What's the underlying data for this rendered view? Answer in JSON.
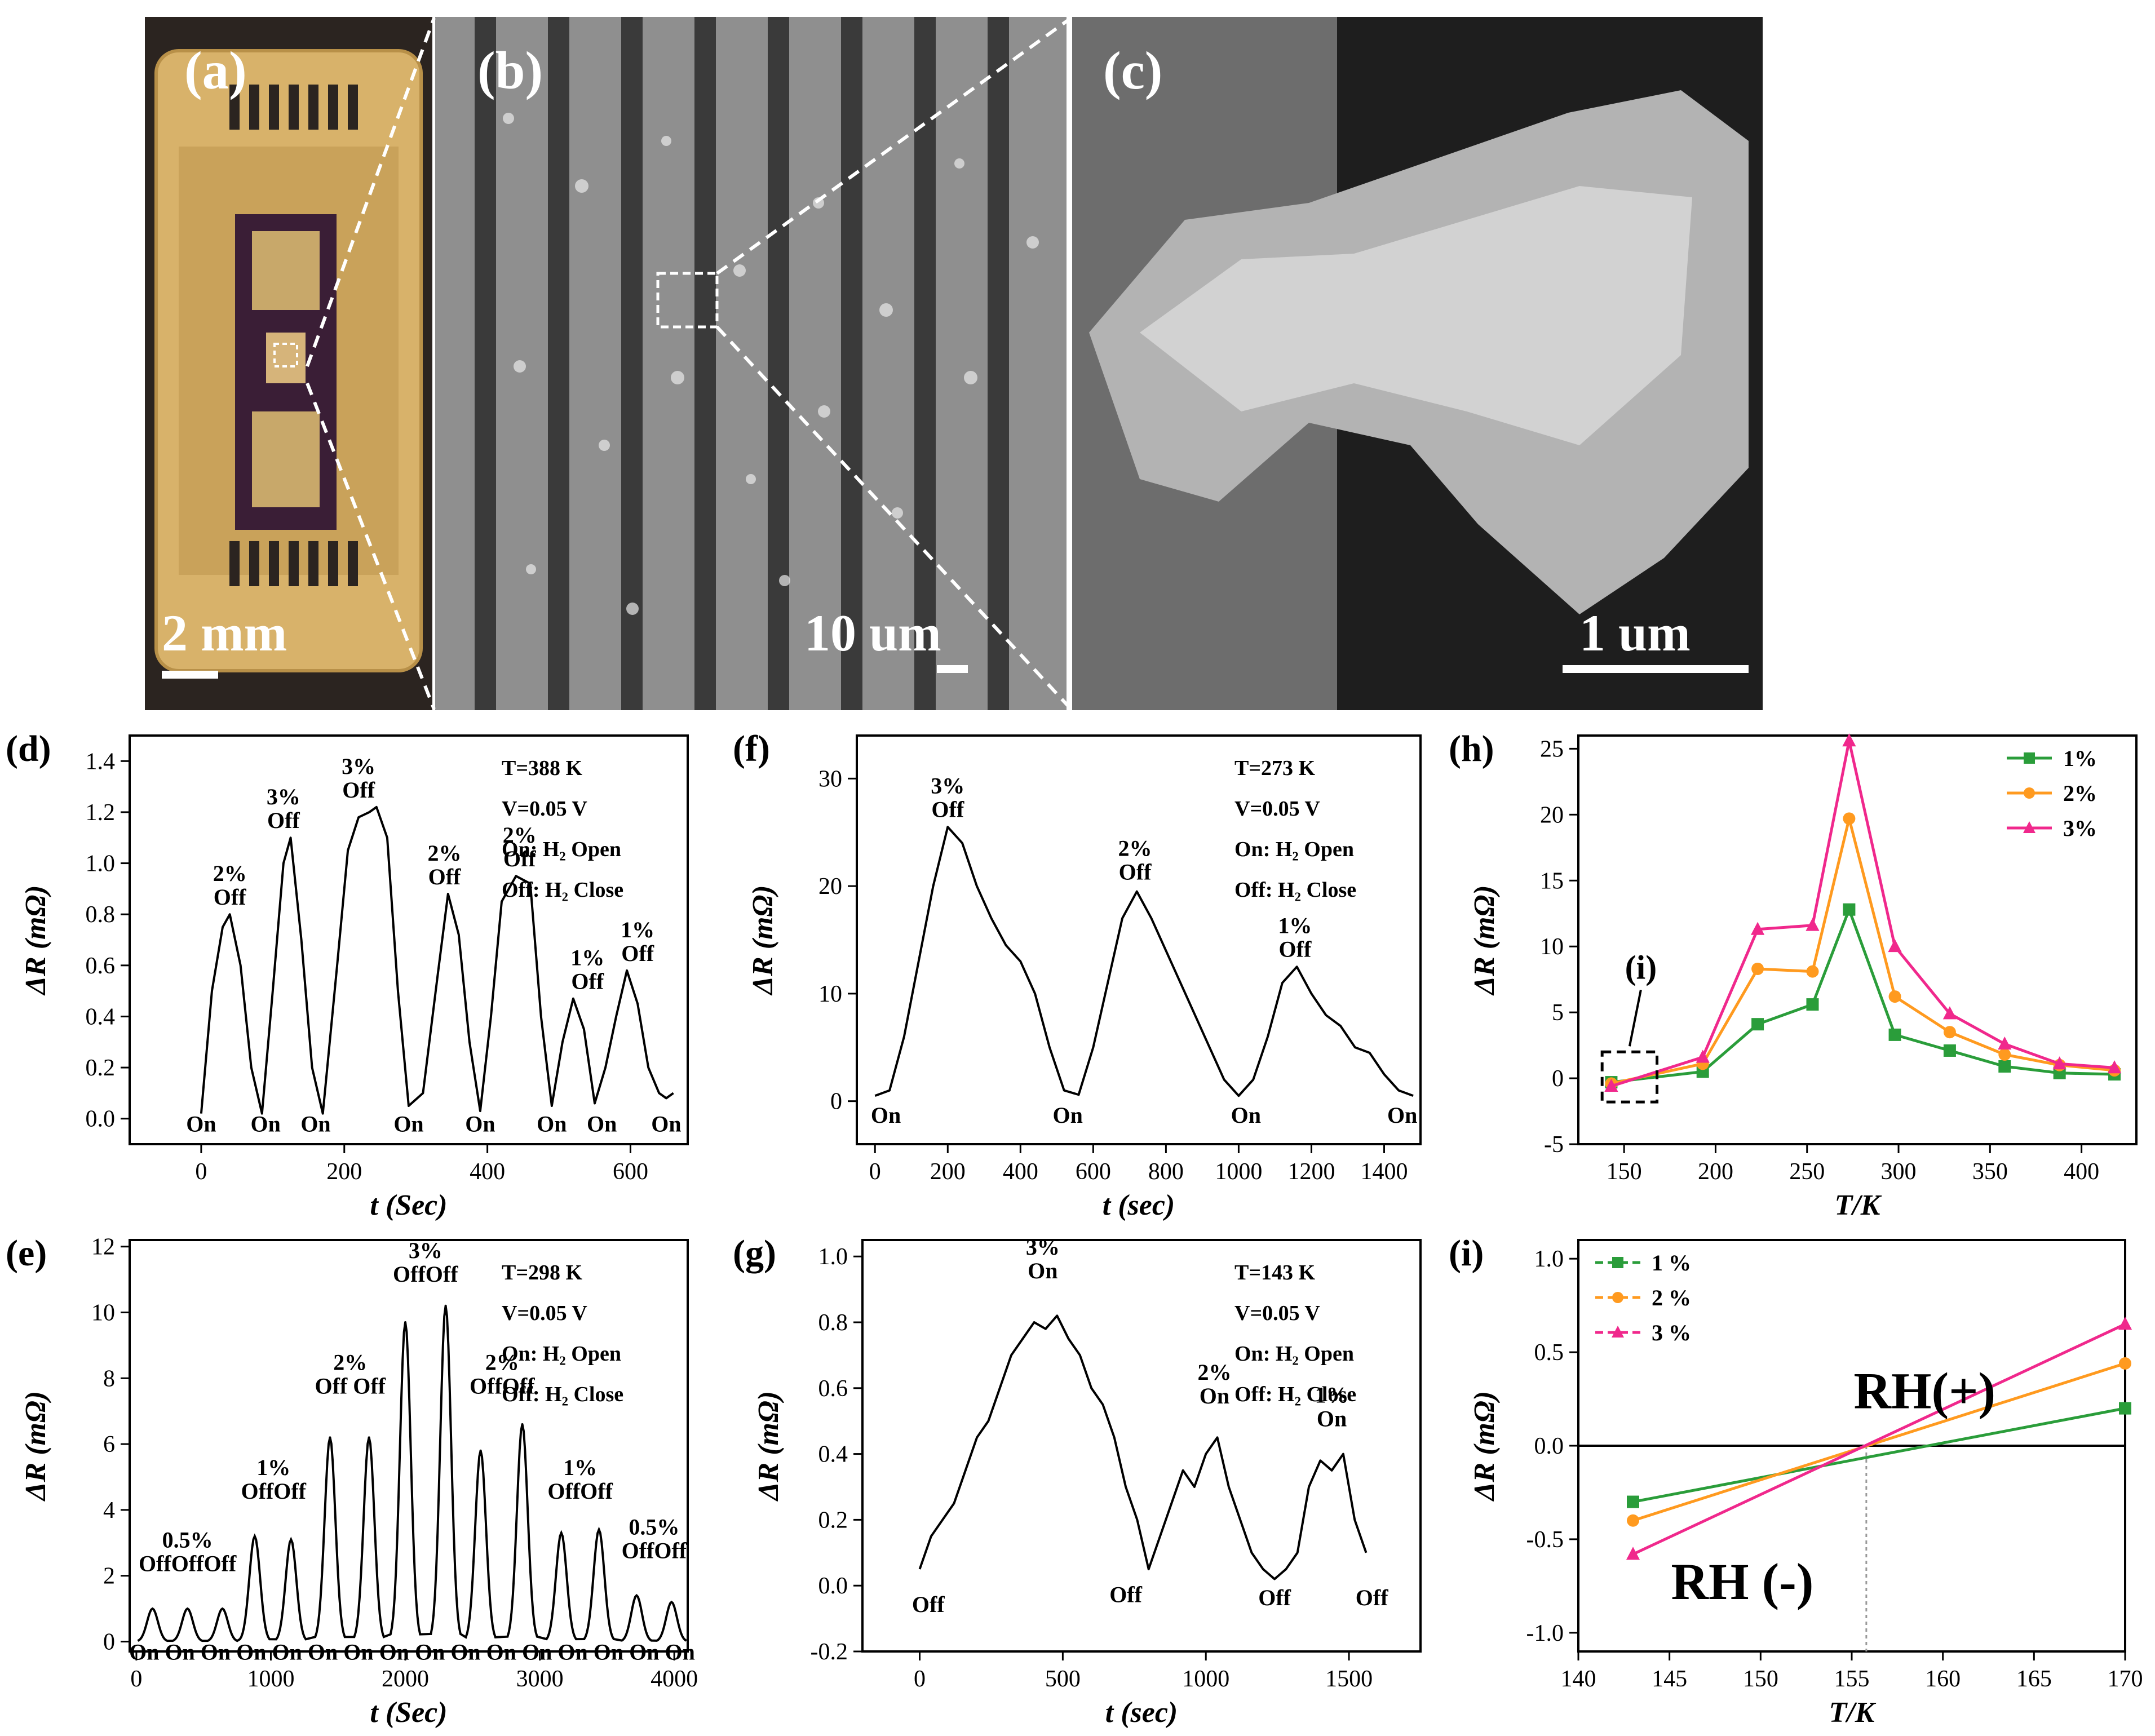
{
  "photos": [
    {
      "label": "(a)",
      "scale": "2 mm"
    },
    {
      "label": "(b)",
      "scale": "10 um"
    },
    {
      "label": "(c)",
      "scale": "1 um"
    }
  ],
  "chart_data": [
    {
      "id": "d",
      "label": "(d)",
      "type": "line",
      "xlabel": "t (Sec)",
      "ylabel": "ΔR (mΩ)",
      "xlim": [
        -100,
        680
      ],
      "ylim": [
        -0.1,
        1.5
      ],
      "xticks": [
        0,
        200,
        400,
        600
      ],
      "yticks": [
        0.0,
        0.2,
        0.4,
        0.6,
        0.8,
        1.0,
        1.2,
        1.4
      ],
      "ytick_decimals": 1,
      "info": [
        "T=388 K",
        "V=0.05 V",
        "On: H₂ Open",
        "Off: H₂ Close"
      ],
      "series": [
        {
          "name": "ΔR",
          "x": [
            0,
            15,
            30,
            40,
            55,
            70,
            85,
            100,
            115,
            125,
            140,
            155,
            170,
            190,
            205,
            220,
            235,
            245,
            260,
            275,
            290,
            310,
            330,
            345,
            360,
            375,
            390,
            405,
            420,
            440,
            460,
            475,
            490,
            505,
            520,
            535,
            550,
            565,
            580,
            595,
            610,
            625,
            640,
            650,
            660
          ],
          "y": [
            0.02,
            0.5,
            0.75,
            0.8,
            0.6,
            0.2,
            0.02,
            0.5,
            1.0,
            1.1,
            0.7,
            0.2,
            0.02,
            0.6,
            1.05,
            1.18,
            1.2,
            1.22,
            1.1,
            0.5,
            0.05,
            0.1,
            0.55,
            0.88,
            0.72,
            0.3,
            0.03,
            0.4,
            0.85,
            0.95,
            0.92,
            0.4,
            0.05,
            0.3,
            0.47,
            0.35,
            0.06,
            0.2,
            0.4,
            0.58,
            0.45,
            0.2,
            0.1,
            0.08,
            0.1
          ]
        }
      ],
      "annotations": [
        {
          "x": 40,
          "y": 0.82,
          "text": "2%",
          "text2": "Off"
        },
        {
          "x": 115,
          "y": 1.12,
          "text": "3%",
          "text2": "Off"
        },
        {
          "x": 220,
          "y": 1.24,
          "text": "3%",
          "text2": "Off"
        },
        {
          "x": 340,
          "y": 0.9,
          "text": "2%",
          "text2": "Off"
        },
        {
          "x": 445,
          "y": 0.97,
          "text": "2%",
          "text2": "Off"
        },
        {
          "x": 540,
          "y": 0.49,
          "text": "1%",
          "text2": "Off"
        },
        {
          "x": 610,
          "y": 0.6,
          "text": "1%",
          "text2": "Off"
        },
        {
          "x": 0,
          "y": -0.05,
          "text": "On"
        },
        {
          "x": 90,
          "y": -0.05,
          "text": "On"
        },
        {
          "x": 160,
          "y": -0.05,
          "text": "On"
        },
        {
          "x": 290,
          "y": -0.05,
          "text": "On"
        },
        {
          "x": 390,
          "y": -0.05,
          "text": "On"
        },
        {
          "x": 490,
          "y": -0.05,
          "text": "On"
        },
        {
          "x": 560,
          "y": -0.05,
          "text": "On"
        },
        {
          "x": 650,
          "y": -0.05,
          "text": "On"
        }
      ]
    },
    {
      "id": "f",
      "label": "(f)",
      "type": "line",
      "xlabel": "t (sec)",
      "ylabel": "ΔR (mΩ)",
      "xlim": [
        -50,
        1500
      ],
      "ylim": [
        -4,
        34
      ],
      "xticks": [
        0,
        200,
        400,
        600,
        800,
        1000,
        1200,
        1400
      ],
      "yticks": [
        0,
        10,
        20,
        30
      ],
      "ytick_decimals": 0,
      "info": [
        "T=273 K",
        "V=0.05 V",
        "On: H₂ Open",
        "Off: H₂ Close"
      ],
      "series": [
        {
          "name": "ΔR",
          "x": [
            0,
            40,
            80,
            120,
            160,
            200,
            240,
            280,
            320,
            360,
            400,
            440,
            480,
            520,
            560,
            600,
            640,
            680,
            720,
            760,
            800,
            840,
            880,
            920,
            960,
            1000,
            1040,
            1080,
            1120,
            1160,
            1200,
            1240,
            1280,
            1320,
            1360,
            1400,
            1440,
            1480
          ],
          "y": [
            0.5,
            1,
            6,
            13,
            20,
            25.5,
            24,
            20,
            17,
            14.5,
            13,
            10,
            5,
            1,
            0.6,
            5,
            11,
            17,
            19.5,
            17,
            14,
            11,
            8,
            5,
            2,
            0.5,
            2,
            6,
            11,
            12.5,
            10,
            8,
            7,
            5,
            4.5,
            2.5,
            1,
            0.5
          ]
        }
      ],
      "annotations": [
        {
          "x": 200,
          "y": 26,
          "text": "3%",
          "text2": "Off"
        },
        {
          "x": 715,
          "y": 20.2,
          "text": "2%",
          "text2": "Off"
        },
        {
          "x": 1155,
          "y": 13,
          "text": "1%",
          "text2": "Off"
        },
        {
          "x": 30,
          "y": -2,
          "text": "On"
        },
        {
          "x": 530,
          "y": -2,
          "text": "On"
        },
        {
          "x": 1020,
          "y": -2,
          "text": "On"
        },
        {
          "x": 1450,
          "y": -2,
          "text": "On"
        }
      ]
    },
    {
      "id": "h",
      "label": "(h)",
      "type": "line",
      "xlabel": "T/K",
      "ylabel": "ΔR (mΩ)",
      "xlim": [
        125,
        430
      ],
      "ylim": [
        -5,
        26
      ],
      "xticks": [
        150,
        200,
        250,
        300,
        350,
        400
      ],
      "yticks": [
        -5,
        0,
        5,
        10,
        15,
        20,
        25
      ],
      "ytick_decimals": 0,
      "legend": [
        {
          "name": "1%",
          "color": "#2a9d3a",
          "marker": "square"
        },
        {
          "name": "2%",
          "color": "#ff9a1f",
          "marker": "circle"
        },
        {
          "name": "3%",
          "color": "#f0288c",
          "marker": "triangle"
        }
      ],
      "inset_box": {
        "x0": 138,
        "x1": 168,
        "y0": -1.8,
        "y1": 2.0,
        "label": "(i)"
      },
      "series": [
        {
          "name": "1%",
          "color": "#2a9d3a",
          "marker": "square",
          "x": [
            143,
            193,
            223,
            253,
            273,
            298,
            328,
            358,
            388,
            418
          ],
          "y": [
            -0.3,
            0.5,
            4.1,
            5.6,
            12.8,
            3.3,
            2.1,
            0.9,
            0.4,
            0.3
          ]
        },
        {
          "name": "2%",
          "color": "#ff9a1f",
          "marker": "circle",
          "x": [
            143,
            193,
            223,
            253,
            273,
            298,
            328,
            358,
            388,
            418
          ],
          "y": [
            -0.4,
            1.1,
            8.3,
            8.1,
            19.7,
            6.2,
            3.5,
            1.8,
            1.0,
            0.6
          ]
        },
        {
          "name": "3%",
          "color": "#f0288c",
          "marker": "triangle",
          "x": [
            143,
            193,
            223,
            253,
            273,
            298,
            328,
            358,
            388,
            418
          ],
          "y": [
            -0.6,
            1.6,
            11.3,
            11.6,
            25.6,
            10.0,
            4.9,
            2.6,
            1.1,
            0.8
          ]
        }
      ]
    },
    {
      "id": "e",
      "label": "(e)",
      "type": "line",
      "xlabel": "t (Sec)",
      "ylabel": "ΔR (mΩ)",
      "xlim": [
        -50,
        4100
      ],
      "ylim": [
        -0.3,
        12.2
      ],
      "xticks": [
        0,
        1000,
        2000,
        3000,
        4000
      ],
      "yticks": [
        0,
        2,
        4,
        6,
        8,
        10,
        12
      ],
      "ytick_decimals": 0,
      "info": [
        "T=298 K",
        "V=0.05 V",
        "On: H₂ Open",
        "Off: H₂ Close"
      ],
      "peaks": [
        {
          "x": 120,
          "y": 1.0
        },
        {
          "x": 380,
          "y": 1.0
        },
        {
          "x": 640,
          "y": 1.0
        },
        {
          "x": 880,
          "y": 3.2
        },
        {
          "x": 1150,
          "y": 3.1
        },
        {
          "x": 1440,
          "y": 6.2
        },
        {
          "x": 1730,
          "y": 6.2
        },
        {
          "x": 2000,
          "y": 9.7
        },
        {
          "x": 2300,
          "y": 10.2
        },
        {
          "x": 2560,
          "y": 5.8
        },
        {
          "x": 2870,
          "y": 6.6
        },
        {
          "x": 3160,
          "y": 3.3
        },
        {
          "x": 3440,
          "y": 3.4
        },
        {
          "x": 3720,
          "y": 1.4
        },
        {
          "x": 3980,
          "y": 1.2
        }
      ],
      "annotations": [
        {
          "x": 380,
          "y": 2.0,
          "text": "0.5%",
          "text2": "OffOffOff"
        },
        {
          "x": 1020,
          "y": 4.2,
          "text": "1%",
          "text2": "OffOff"
        },
        {
          "x": 1590,
          "y": 7.4,
          "text": "2%",
          "text2": "Off Off"
        },
        {
          "x": 2150,
          "y": 10.8,
          "text": "3%",
          "text2": "OffOff"
        },
        {
          "x": 2720,
          "y": 7.4,
          "text": "2%",
          "text2": "OffOff"
        },
        {
          "x": 3300,
          "y": 4.2,
          "text": "1%",
          "text2": "OffOff"
        },
        {
          "x": 3850,
          "y": 2.4,
          "text": "0.5%",
          "text2": "OffOff"
        },
        {
          "x": 2050,
          "y": -0.55,
          "text": "On On On On On On On On On On On On On On On On"
        }
      ]
    },
    {
      "id": "g",
      "label": "(g)",
      "type": "line",
      "xlabel": "t (sec)",
      "ylabel": "ΔR (mΩ)",
      "xlim": [
        -200,
        1750
      ],
      "ylim": [
        -0.2,
        1.05
      ],
      "xticks": [
        0,
        500,
        1000,
        1500
      ],
      "yticks": [
        -0.2,
        0.0,
        0.2,
        0.4,
        0.6,
        0.8,
        1.0
      ],
      "ytick_decimals": 1,
      "info": [
        "T=143 K",
        "V=0.05 V",
        "On: H₂ Open",
        "Off: H₂ Close"
      ],
      "series": [
        {
          "name": "ΔR",
          "x": [
            0,
            40,
            80,
            120,
            160,
            200,
            240,
            280,
            320,
            360,
            400,
            440,
            480,
            520,
            560,
            600,
            640,
            680,
            720,
            760,
            800,
            840,
            880,
            920,
            960,
            1000,
            1040,
            1080,
            1120,
            1160,
            1200,
            1240,
            1280,
            1320,
            1360,
            1400,
            1440,
            1480,
            1520,
            1560
          ],
          "y": [
            0.05,
            0.15,
            0.2,
            0.25,
            0.35,
            0.45,
            0.5,
            0.6,
            0.7,
            0.75,
            0.8,
            0.78,
            0.82,
            0.75,
            0.7,
            0.6,
            0.55,
            0.45,
            0.3,
            0.2,
            0.05,
            0.15,
            0.25,
            0.35,
            0.3,
            0.4,
            0.45,
            0.3,
            0.2,
            0.1,
            0.05,
            0.02,
            0.05,
            0.1,
            0.3,
            0.38,
            0.35,
            0.4,
            0.2,
            0.1
          ]
        }
      ],
      "annotations": [
        {
          "x": 430,
          "y": 0.92,
          "text": "3%",
          "text2": "On"
        },
        {
          "x": 1030,
          "y": 0.54,
          "text": "2%",
          "text2": "On"
        },
        {
          "x": 1440,
          "y": 0.47,
          "text": "1%",
          "text2": "On"
        },
        {
          "x": 30,
          "y": -0.08,
          "text": "Off"
        },
        {
          "x": 720,
          "y": -0.05,
          "text": "Off"
        },
        {
          "x": 1240,
          "y": -0.06,
          "text": "Off"
        },
        {
          "x": 1580,
          "y": -0.06,
          "text": "Off"
        }
      ]
    },
    {
      "id": "i",
      "label": "(i)",
      "type": "line",
      "xlabel": "T/K",
      "ylabel": "ΔR (mΩ)",
      "xlim": [
        140,
        170
      ],
      "ylim": [
        -1.1,
        1.1
      ],
      "xticks": [
        140,
        145,
        150,
        155,
        160,
        165,
        170
      ],
      "yticks": [
        -1.0,
        -0.5,
        0.0,
        0.5,
        1.0
      ],
      "ytick_decimals": 1,
      "legend": [
        {
          "name": "1 %",
          "color": "#2a9d3a",
          "marker": "square"
        },
        {
          "name": "2 %",
          "color": "#ff9a1f",
          "marker": "circle"
        },
        {
          "name": "3 %",
          "color": "#f0288c",
          "marker": "triangle"
        }
      ],
      "hline": 0,
      "vline": 155.8,
      "region_labels": [
        {
          "x": 159,
          "y": 0.2,
          "text": "RH(+)"
        },
        {
          "x": 149,
          "y": -0.82,
          "text": "RH (-)"
        }
      ],
      "series": [
        {
          "name": "1 %",
          "color": "#2a9d3a",
          "marker": "square",
          "x": [
            143,
            170
          ],
          "y": [
            -0.3,
            0.2
          ]
        },
        {
          "name": "2 %",
          "color": "#ff9a1f",
          "marker": "circle",
          "x": [
            143,
            170
          ],
          "y": [
            -0.4,
            0.44
          ]
        },
        {
          "name": "3 %",
          "color": "#f0288c",
          "marker": "triangle",
          "x": [
            143,
            170
          ],
          "y": [
            -0.58,
            0.65
          ]
        }
      ]
    }
  ]
}
